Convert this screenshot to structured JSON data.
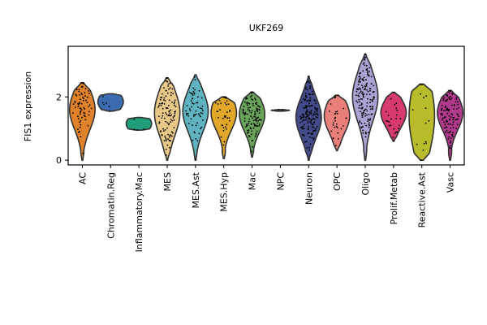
{
  "chart_data": {
    "type": "violin",
    "title": "UKF269",
    "xlabel": "",
    "ylabel": "FIS1 expression",
    "ylim": [
      -0.15,
      3.6
    ],
    "yticks": [
      0,
      2
    ],
    "grid": false,
    "legend": "none",
    "categories": [
      {
        "name": "AC",
        "color": "#e0822a",
        "min": 0.0,
        "max": 2.45,
        "median": 1.6,
        "q1": 1.25,
        "q3": 1.95,
        "n_points": 70
      },
      {
        "name": "Chromatin.Reg",
        "color": "#3d6bb0",
        "min": 1.55,
        "max": 2.1,
        "median": 1.85,
        "q1": 1.65,
        "q3": 2.0,
        "n_points": 6
      },
      {
        "name": "Inflammatory.Mac",
        "color": "#1f9c7a",
        "min": 0.95,
        "max": 1.35,
        "median": 1.15,
        "q1": 1.0,
        "q3": 1.3,
        "n_points": 4
      },
      {
        "name": "MES",
        "color": "#e8c887",
        "min": 0.0,
        "max": 2.6,
        "median": 1.5,
        "q1": 1.05,
        "q3": 1.85,
        "n_points": 110
      },
      {
        "name": "MES.Ast",
        "color": "#5fb3c0",
        "min": 0.0,
        "max": 2.7,
        "median": 1.55,
        "q1": 1.2,
        "q3": 1.9,
        "n_points": 60
      },
      {
        "name": "MES.Hyp",
        "color": "#e0a728",
        "min": 0.05,
        "max": 2.0,
        "median": 1.5,
        "q1": 1.2,
        "q3": 1.8,
        "n_points": 40
      },
      {
        "name": "Mac",
        "color": "#6aa35a",
        "min": 0.1,
        "max": 2.15,
        "median": 1.45,
        "q1": 1.15,
        "q3": 1.75,
        "n_points": 120
      },
      {
        "name": "NPC",
        "color": "#4d4d4d",
        "min": 1.55,
        "max": 1.6,
        "median": 1.57,
        "q1": 1.55,
        "q3": 1.6,
        "n_points": 2
      },
      {
        "name": "Neuron",
        "color": "#444b8a",
        "min": 0.0,
        "max": 2.65,
        "median": 1.35,
        "q1": 1.0,
        "q3": 1.7,
        "n_points": 150
      },
      {
        "name": "OPC",
        "color": "#e87f7a",
        "min": 0.3,
        "max": 2.05,
        "median": 1.4,
        "q1": 1.15,
        "q3": 1.75,
        "n_points": 30
      },
      {
        "name": "Oligo",
        "color": "#a9a3d4",
        "min": 0.0,
        "max": 3.35,
        "median": 2.0,
        "q1": 1.55,
        "q3": 2.4,
        "n_points": 160
      },
      {
        "name": "Prolif.Metab",
        "color": "#d63a70",
        "min": 0.6,
        "max": 2.15,
        "median": 1.5,
        "q1": 1.25,
        "q3": 1.75,
        "n_points": 25
      },
      {
        "name": "Reactive.Ast",
        "color": "#b8bb2a",
        "min": 0.0,
        "max": 2.4,
        "median": 1.4,
        "q1": 0.7,
        "q3": 2.0,
        "n_points": 20
      },
      {
        "name": "Vasc",
        "color": "#b13a8c",
        "min": 0.0,
        "max": 2.2,
        "median": 1.5,
        "q1": 1.2,
        "q3": 1.8,
        "n_points": 110
      }
    ]
  }
}
